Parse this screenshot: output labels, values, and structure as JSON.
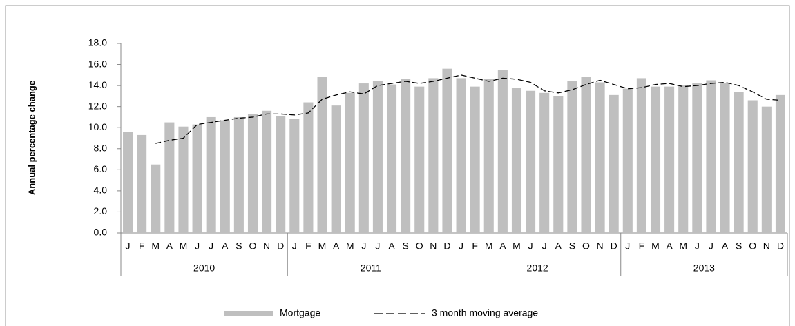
{
  "chart_data": {
    "type": "bar",
    "y_label": "Annual percentage change",
    "categories": [
      "J",
      "F",
      "M",
      "A",
      "M",
      "J",
      "J",
      "A",
      "S",
      "O",
      "N",
      "D",
      "J",
      "F",
      "M",
      "A",
      "M",
      "J",
      "J",
      "A",
      "S",
      "O",
      "N",
      "D",
      "J",
      "F",
      "M",
      "A",
      "M",
      "J",
      "J",
      "A",
      "S",
      "O",
      "N",
      "D",
      "J",
      "F",
      "M",
      "A",
      "M",
      "J",
      "J",
      "A",
      "S",
      "O",
      "N",
      "D"
    ],
    "groups": [
      "2010",
      "2011",
      "2012",
      "2013"
    ],
    "series": [
      {
        "name": "Mortgage",
        "color": "#bfbfbf",
        "values": [
          9.6,
          9.3,
          6.5,
          10.5,
          10.1,
          10.3,
          11.0,
          10.7,
          11.0,
          11.3,
          11.6,
          11.1,
          10.8,
          12.4,
          14.8,
          12.1,
          13.3,
          14.2,
          14.4,
          14.1,
          14.6,
          13.9,
          14.7,
          15.6,
          14.7,
          13.9,
          14.6,
          15.5,
          13.8,
          13.5,
          13.3,
          13.0,
          14.4,
          14.8,
          14.3,
          13.1,
          13.7,
          14.7,
          13.9,
          13.9,
          14.0,
          14.2,
          14.5,
          14.2,
          13.4,
          12.6,
          12.0,
          13.1
        ]
      },
      {
        "name": "3 month moving average",
        "color": "#000000",
        "values": [
          null,
          null,
          8.5,
          8.8,
          9.0,
          10.3,
          10.5,
          10.7,
          10.9,
          11.0,
          11.3,
          11.3,
          11.2,
          11.4,
          12.7,
          13.1,
          13.4,
          13.2,
          14.0,
          14.2,
          14.4,
          14.2,
          14.4,
          14.7,
          15.0,
          14.7,
          14.4,
          14.7,
          14.6,
          14.3,
          13.5,
          13.3,
          13.6,
          14.1,
          14.5,
          14.1,
          13.7,
          13.8,
          14.1,
          14.2,
          13.9,
          14.0,
          14.2,
          14.3,
          14.0,
          13.4,
          12.7,
          12.6
        ]
      }
    ],
    "ylim": [
      0,
      18
    ],
    "yticks": [
      {
        "value": 0,
        "label": "0.0"
      },
      {
        "value": 2,
        "label": "2.0"
      },
      {
        "value": 4,
        "label": "4.0"
      },
      {
        "value": 6,
        "label": "6.0"
      },
      {
        "value": 8,
        "label": "8.0"
      },
      {
        "value": 10,
        "label": "10.0"
      },
      {
        "value": 12,
        "label": "12.0"
      },
      {
        "value": 14,
        "label": "14.0"
      },
      {
        "value": 16,
        "label": "16.0"
      },
      {
        "value": 18,
        "label": "18.0"
      }
    ],
    "legend": "bottom"
  }
}
